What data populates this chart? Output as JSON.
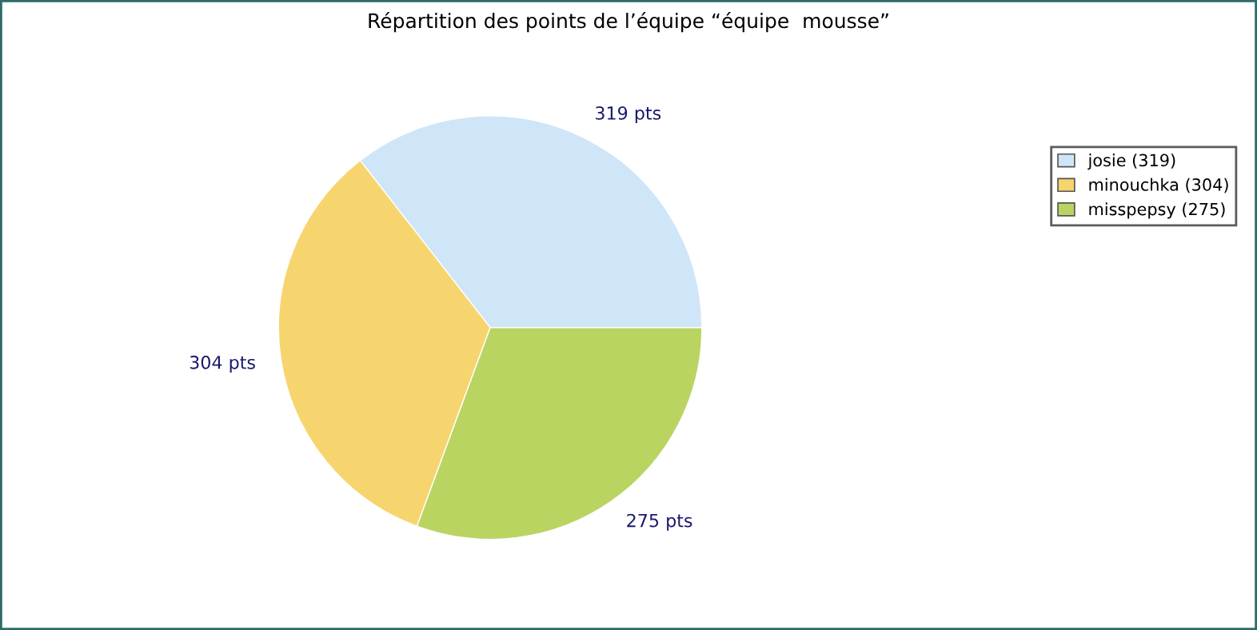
{
  "chart_data": {
    "type": "pie",
    "title": "Répartition des points de l’équipe “équipe  mousse”",
    "categories": [
      "josie (319)",
      "minouchka (304)",
      "misspepsy (275)"
    ],
    "values": [
      319,
      304,
      275
    ],
    "colors": [
      "#cfe5f8",
      "#f7d56e",
      "#bad462"
    ],
    "value_labels": [
      "319 pts",
      "304 pts",
      "275 pts"
    ],
    "legend": "top right"
  }
}
